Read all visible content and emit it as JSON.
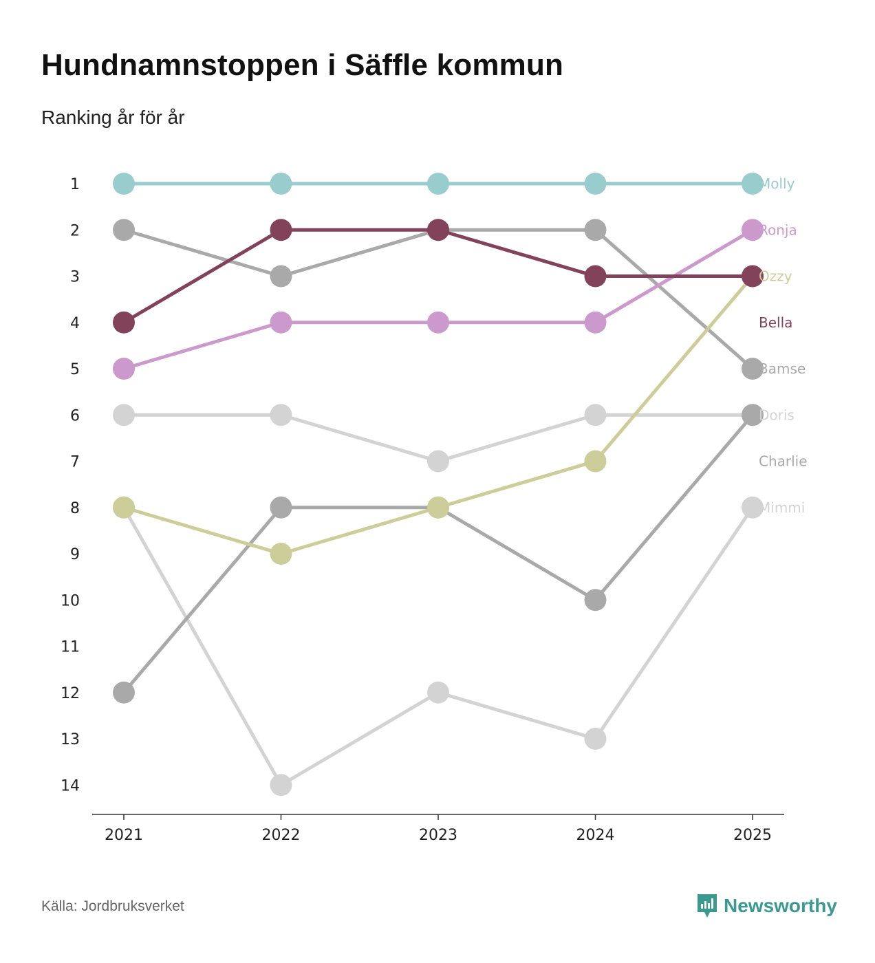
{
  "title": "Hundnamnstoppen i Säffle kommun",
  "subtitle": "Ranking år för år",
  "source": "Källa: Jordbruksverket",
  "brand": "Newsworthy",
  "chart_data": {
    "type": "line",
    "title": "Hundnamnstoppen i Säffle kommun",
    "subtitle": "Ranking år för år",
    "x": [
      "2021",
      "2022",
      "2023",
      "2024",
      "2025"
    ],
    "y_ticks": [
      "1",
      "2",
      "3",
      "4",
      "5",
      "6",
      "7",
      "8",
      "9",
      "10",
      "11",
      "12",
      "13",
      "14"
    ],
    "ylim": [
      1,
      14
    ],
    "y_inverted": true,
    "grid": false,
    "series": [
      {
        "name": "Mimmi",
        "color": "#d3d3d3",
        "values": [
          8,
          14,
          12,
          13,
          8
        ]
      },
      {
        "name": "Doris",
        "color": "#d3d3d3",
        "values": [
          6,
          6,
          7,
          6,
          6
        ]
      },
      {
        "name": "Charlie",
        "color": "#a9a9a9",
        "values": [
          12,
          8,
          8,
          10,
          6
        ]
      },
      {
        "name": "Bamse",
        "color": "#a9a9a9",
        "values": [
          2,
          3,
          2,
          2,
          5
        ]
      },
      {
        "name": "Ozzy",
        "color": "#cdcd99",
        "values": [
          8,
          9,
          8,
          7,
          3
        ]
      },
      {
        "name": "Ronja",
        "color": "#cc99cc",
        "values": [
          5,
          4,
          4,
          4,
          2
        ]
      },
      {
        "name": "Bella",
        "color": "#824259",
        "values": [
          4,
          2,
          2,
          3,
          3
        ]
      },
      {
        "name": "Molly",
        "color": "#99cccc",
        "values": [
          1,
          1,
          1,
          1,
          1
        ]
      }
    ],
    "end_labels": [
      {
        "name": "Molly",
        "color": "#99cccc"
      },
      {
        "name": "Ronja",
        "color": "#cc99cc"
      },
      {
        "name": "Ozzy",
        "color": "#cdcd99"
      },
      {
        "name": "Bella",
        "color": "#824259"
      },
      {
        "name": "Bamse",
        "color": "#a9a9a9"
      },
      {
        "name": "Doris",
        "color": "#d3d3d3"
      },
      {
        "name": "Charlie",
        "color": "#a9a9a9"
      },
      {
        "name": "Mimmi",
        "color": "#d3d3d3"
      }
    ]
  }
}
